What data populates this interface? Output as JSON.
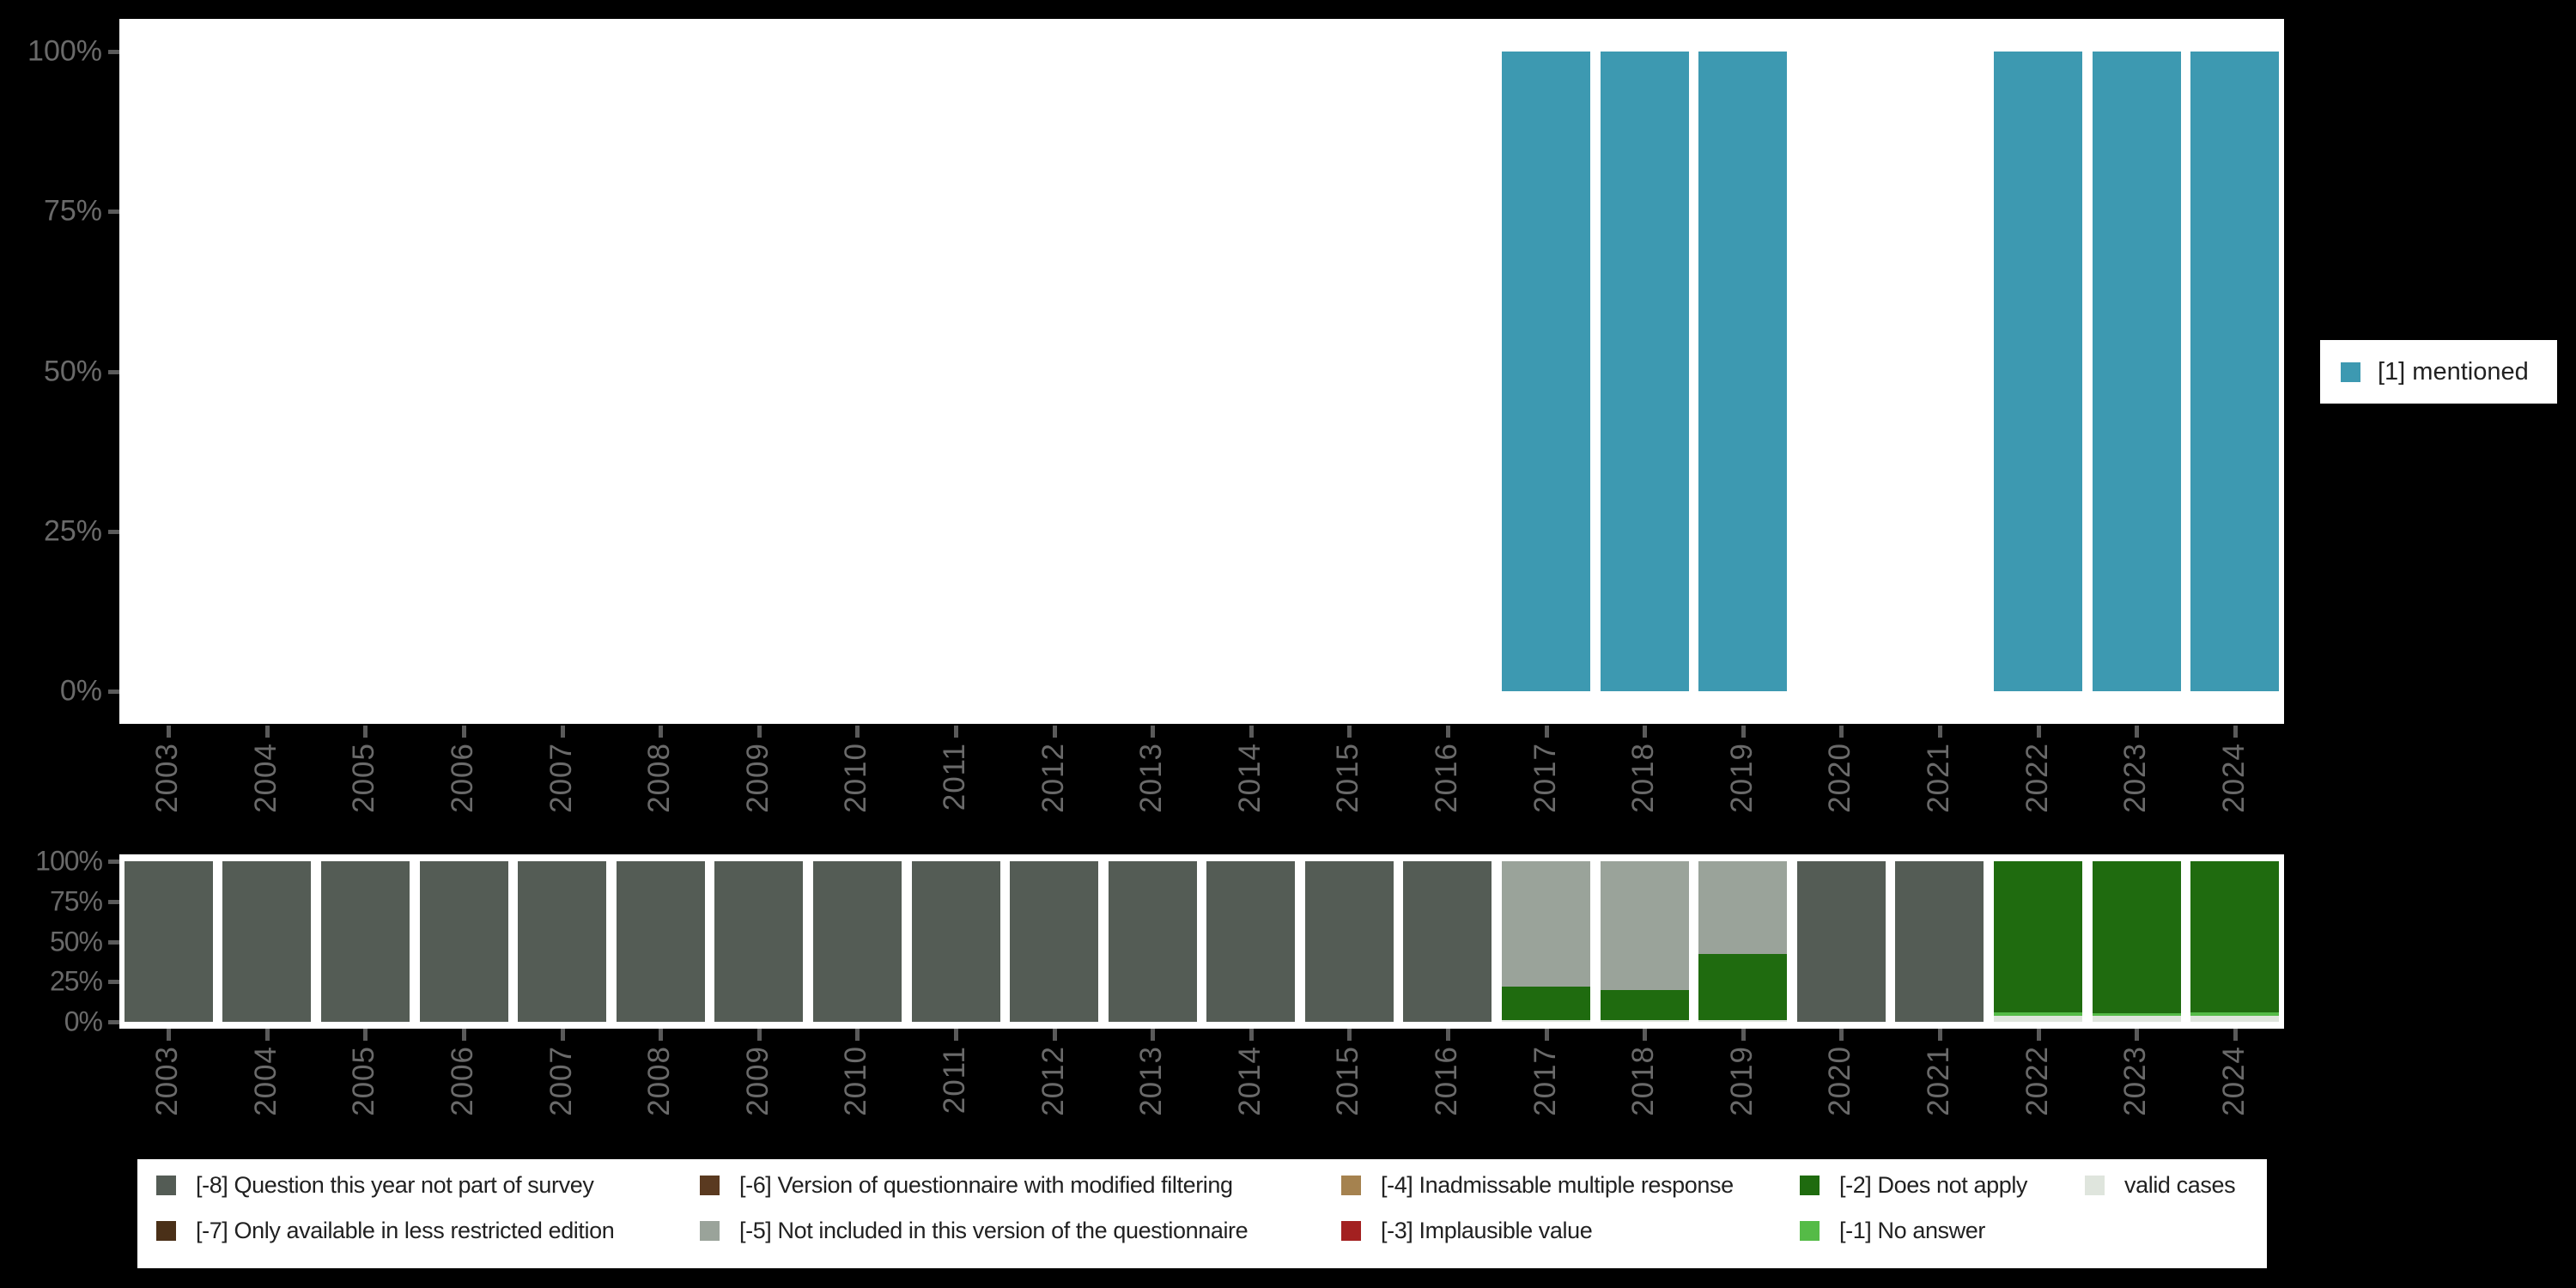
{
  "palette": {
    "mentioned": "#3d99b1",
    "-8": "#545c55",
    "-7": "#4a3018",
    "-6": "#5a3a20",
    "-5": "#9aa39a",
    "-4": "#a5824f",
    "-3": "#a32020",
    "-2": "#1f6b0f",
    "-1": "#55bb47",
    "valid": "#dfe5dd"
  },
  "axis": {
    "text_color": "#6a6a6a",
    "tick_color": "#5a5a5a"
  },
  "top_legend": {
    "label": "[1] mentioned",
    "swatch_key": "mentioned"
  },
  "bottom_legend": {
    "items": [
      {
        "col": 0,
        "row": 0,
        "key": "-8",
        "label": "[-8] Question this year not part of survey"
      },
      {
        "col": 0,
        "row": 1,
        "key": "-7",
        "label": "[-7] Only available in less restricted edition"
      },
      {
        "col": 1,
        "row": 0,
        "key": "-6",
        "label": "[-6] Version of questionnaire with modified filtering"
      },
      {
        "col": 1,
        "row": 1,
        "key": "-5",
        "label": "[-5] Not included in this version of the questionnaire"
      },
      {
        "col": 2,
        "row": 0,
        "key": "-4",
        "label": "[-4] Inadmissable multiple response"
      },
      {
        "col": 2,
        "row": 1,
        "key": "-3",
        "label": "[-3] Implausible value"
      },
      {
        "col": 3,
        "row": 0,
        "key": "-2",
        "label": "[-2] Does not apply"
      },
      {
        "col": 3,
        "row": 1,
        "key": "-1",
        "label": "[-1] No answer"
      },
      {
        "col": 4,
        "row": 0,
        "key": "valid",
        "label": "valid cases"
      }
    ]
  },
  "chart_data": [
    {
      "type": "bar",
      "title": "",
      "categories": [
        "2003",
        "2004",
        "2005",
        "2006",
        "2007",
        "2008",
        "2009",
        "2010",
        "2011",
        "2012",
        "2013",
        "2014",
        "2015",
        "2016",
        "2017",
        "2018",
        "2019",
        "2020",
        "2021",
        "2022",
        "2023",
        "2024"
      ],
      "series": [
        {
          "name": "[1] mentioned",
          "color_key": "mentioned",
          "values": [
            null,
            null,
            null,
            null,
            null,
            null,
            null,
            null,
            null,
            null,
            null,
            null,
            null,
            null,
            100,
            100,
            100,
            null,
            null,
            100,
            100,
            100
          ]
        }
      ],
      "ylabel_ticks": [
        "100%",
        "75%",
        "50%",
        "25%",
        "0%"
      ],
      "ylim": [
        0,
        100
      ],
      "grid": false,
      "legend_position": "right"
    },
    {
      "type": "stacked-bar",
      "title": "",
      "categories": [
        "2003",
        "2004",
        "2005",
        "2006",
        "2007",
        "2008",
        "2009",
        "2010",
        "2011",
        "2012",
        "2013",
        "2014",
        "2015",
        "2016",
        "2017",
        "2018",
        "2019",
        "2020",
        "2021",
        "2022",
        "2023",
        "2024"
      ],
      "segments_order": "bottom-up",
      "bars": [
        {
          "year": "2003",
          "segments": [
            {
              "key": "-8",
              "value": 100
            }
          ]
        },
        {
          "year": "2004",
          "segments": [
            {
              "key": "-8",
              "value": 100
            }
          ]
        },
        {
          "year": "2005",
          "segments": [
            {
              "key": "-8",
              "value": 100
            }
          ]
        },
        {
          "year": "2006",
          "segments": [
            {
              "key": "-8",
              "value": 100
            }
          ]
        },
        {
          "year": "2007",
          "segments": [
            {
              "key": "-8",
              "value": 100
            }
          ]
        },
        {
          "year": "2008",
          "segments": [
            {
              "key": "-8",
              "value": 100
            }
          ]
        },
        {
          "year": "2009",
          "segments": [
            {
              "key": "-8",
              "value": 100
            }
          ]
        },
        {
          "year": "2010",
          "segments": [
            {
              "key": "-8",
              "value": 100
            }
          ]
        },
        {
          "year": "2011",
          "segments": [
            {
              "key": "-8",
              "value": 100
            }
          ]
        },
        {
          "year": "2012",
          "segments": [
            {
              "key": "-8",
              "value": 100
            }
          ]
        },
        {
          "year": "2013",
          "segments": [
            {
              "key": "-8",
              "value": 100
            }
          ]
        },
        {
          "year": "2014",
          "segments": [
            {
              "key": "-8",
              "value": 100
            }
          ]
        },
        {
          "year": "2015",
          "segments": [
            {
              "key": "-8",
              "value": 100
            }
          ]
        },
        {
          "year": "2016",
          "segments": [
            {
              "key": "-8",
              "value": 100
            }
          ]
        },
        {
          "year": "2017",
          "segments": [
            {
              "key": "valid",
              "value": 1
            },
            {
              "key": "-2",
              "value": 21
            },
            {
              "key": "-5",
              "value": 78
            }
          ]
        },
        {
          "year": "2018",
          "segments": [
            {
              "key": "valid",
              "value": 1
            },
            {
              "key": "-2",
              "value": 19
            },
            {
              "key": "-5",
              "value": 80
            }
          ]
        },
        {
          "year": "2019",
          "segments": [
            {
              "key": "valid",
              "value": 1
            },
            {
              "key": "-2",
              "value": 41
            },
            {
              "key": "-5",
              "value": 58
            }
          ]
        },
        {
          "year": "2020",
          "segments": [
            {
              "key": "-8",
              "value": 100
            }
          ]
        },
        {
          "year": "2021",
          "segments": [
            {
              "key": "-8",
              "value": 100
            }
          ]
        },
        {
          "year": "2022",
          "segments": [
            {
              "key": "valid",
              "value": 3.5
            },
            {
              "key": "-1",
              "value": 2.5
            },
            {
              "key": "-2",
              "value": 94
            }
          ]
        },
        {
          "year": "2023",
          "segments": [
            {
              "key": "valid",
              "value": 4
            },
            {
              "key": "-1",
              "value": 1.5
            },
            {
              "key": "-2",
              "value": 94.5
            }
          ]
        },
        {
          "year": "2024",
          "segments": [
            {
              "key": "valid",
              "value": 4
            },
            {
              "key": "-1",
              "value": 2
            },
            {
              "key": "-2",
              "value": 94
            }
          ]
        }
      ],
      "ylabel_ticks": [
        "100%",
        "75%",
        "50%",
        "25%",
        "0%"
      ],
      "ylim": [
        0,
        100
      ],
      "grid": false,
      "legend_position": "bottom"
    }
  ]
}
